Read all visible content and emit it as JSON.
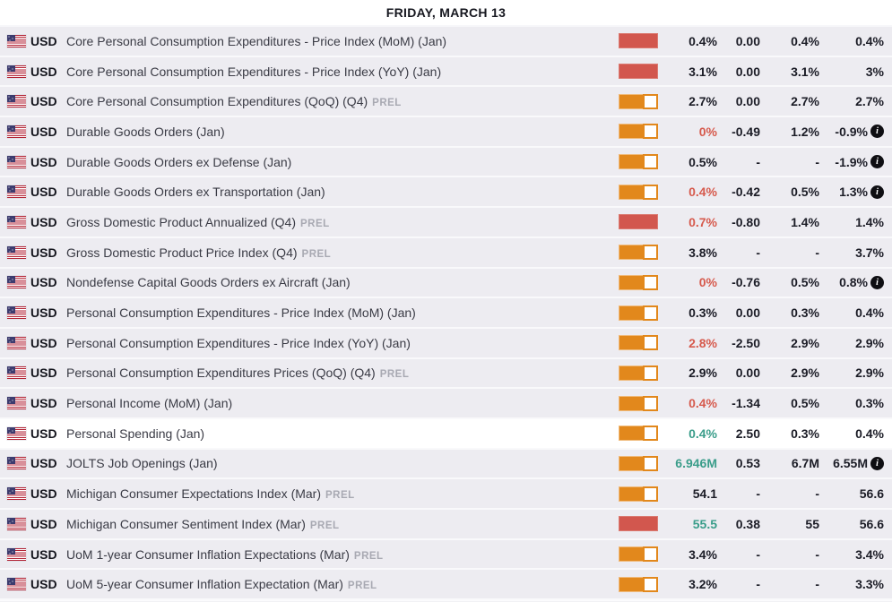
{
  "header": {
    "title": "FRIDAY, MARCH 13"
  },
  "currency": "USD",
  "info_icon_glyph": "i",
  "colors": {
    "row_background": "#edecf1",
    "highlighted_row_background": "#ffffff",
    "high_volatility": "#d2574e",
    "medium_volatility": "#e2881c",
    "negative_actual": "#d65a4d",
    "positive_actual": "#3a9d8a",
    "neutral_value": "#1b1c26",
    "prel_label": "#a8a9b2"
  },
  "rows": [
    {
      "event": "Core Personal Consumption Expenditures - Price Index (MoM) (Jan)",
      "suffix": "",
      "volatility": "high",
      "actual": "0.4%",
      "actual_tone": "neutral",
      "deviation": "0.00",
      "consensus": "0.4%",
      "previous": "0.4%",
      "info": false,
      "highlighted": false
    },
    {
      "event": "Core Personal Consumption Expenditures - Price Index (YoY) (Jan)",
      "suffix": "",
      "volatility": "high",
      "actual": "3.1%",
      "actual_tone": "neutral",
      "deviation": "0.00",
      "consensus": "3.1%",
      "previous": "3%",
      "info": false,
      "highlighted": false
    },
    {
      "event": "Core Personal Consumption Expenditures (QoQ) (Q4)",
      "suffix": "PREL",
      "volatility": "medium",
      "actual": "2.7%",
      "actual_tone": "neutral",
      "deviation": "0.00",
      "consensus": "2.7%",
      "previous": "2.7%",
      "info": false,
      "highlighted": false
    },
    {
      "event": "Durable Goods Orders (Jan)",
      "suffix": "",
      "volatility": "medium",
      "actual": "0%",
      "actual_tone": "negative",
      "deviation": "-0.49",
      "consensus": "1.2%",
      "previous": "-0.9%",
      "info": true,
      "highlighted": false
    },
    {
      "event": "Durable Goods Orders ex Defense (Jan)",
      "suffix": "",
      "volatility": "medium",
      "actual": "0.5%",
      "actual_tone": "neutral",
      "deviation": "-",
      "consensus": "-",
      "previous": "-1.9%",
      "info": true,
      "highlighted": false
    },
    {
      "event": "Durable Goods Orders ex Transportation (Jan)",
      "suffix": "",
      "volatility": "medium",
      "actual": "0.4%",
      "actual_tone": "negative",
      "deviation": "-0.42",
      "consensus": "0.5%",
      "previous": "1.3%",
      "info": true,
      "highlighted": false
    },
    {
      "event": "Gross Domestic Product Annualized (Q4)",
      "suffix": "PREL",
      "volatility": "high",
      "actual": "0.7%",
      "actual_tone": "negative",
      "deviation": "-0.80",
      "consensus": "1.4%",
      "previous": "1.4%",
      "info": false,
      "highlighted": false
    },
    {
      "event": "Gross Domestic Product Price Index (Q4)",
      "suffix": "PREL",
      "volatility": "medium",
      "actual": "3.8%",
      "actual_tone": "neutral",
      "deviation": "-",
      "consensus": "-",
      "previous": "3.7%",
      "info": false,
      "highlighted": false
    },
    {
      "event": "Nondefense Capital Goods Orders ex Aircraft (Jan)",
      "suffix": "",
      "volatility": "medium",
      "actual": "0%",
      "actual_tone": "negative",
      "deviation": "-0.76",
      "consensus": "0.5%",
      "previous": "0.8%",
      "info": true,
      "highlighted": false
    },
    {
      "event": "Personal Consumption Expenditures - Price Index (MoM) (Jan)",
      "suffix": "",
      "volatility": "medium",
      "actual": "0.3%",
      "actual_tone": "neutral",
      "deviation": "0.00",
      "consensus": "0.3%",
      "previous": "0.4%",
      "info": false,
      "highlighted": false
    },
    {
      "event": "Personal Consumption Expenditures - Price Index (YoY) (Jan)",
      "suffix": "",
      "volatility": "medium",
      "actual": "2.8%",
      "actual_tone": "negative",
      "deviation": "-2.50",
      "consensus": "2.9%",
      "previous": "2.9%",
      "info": false,
      "highlighted": false
    },
    {
      "event": "Personal Consumption Expenditures Prices (QoQ) (Q4)",
      "suffix": "PREL",
      "volatility": "medium",
      "actual": "2.9%",
      "actual_tone": "neutral",
      "deviation": "0.00",
      "consensus": "2.9%",
      "previous": "2.9%",
      "info": false,
      "highlighted": false
    },
    {
      "event": "Personal Income (MoM) (Jan)",
      "suffix": "",
      "volatility": "medium",
      "actual": "0.4%",
      "actual_tone": "negative",
      "deviation": "-1.34",
      "consensus": "0.5%",
      "previous": "0.3%",
      "info": false,
      "highlighted": false
    },
    {
      "event": "Personal Spending (Jan)",
      "suffix": "",
      "volatility": "medium",
      "actual": "0.4%",
      "actual_tone": "positive",
      "deviation": "2.50",
      "consensus": "0.3%",
      "previous": "0.4%",
      "info": false,
      "highlighted": true
    },
    {
      "event": "JOLTS Job Openings (Jan)",
      "suffix": "",
      "volatility": "medium",
      "actual": "6.946M",
      "actual_tone": "positive",
      "deviation": "0.53",
      "consensus": "6.7M",
      "previous": "6.55M",
      "info": true,
      "highlighted": false
    },
    {
      "event": "Michigan Consumer Expectations Index (Mar)",
      "suffix": "PREL",
      "volatility": "medium",
      "actual": "54.1",
      "actual_tone": "neutral",
      "deviation": "-",
      "consensus": "-",
      "previous": "56.6",
      "info": false,
      "highlighted": false
    },
    {
      "event": "Michigan Consumer Sentiment Index (Mar)",
      "suffix": "PREL",
      "volatility": "high",
      "actual": "55.5",
      "actual_tone": "positive",
      "deviation": "0.38",
      "consensus": "55",
      "previous": "56.6",
      "info": false,
      "highlighted": false
    },
    {
      "event": "UoM 1-year Consumer Inflation Expectations (Mar)",
      "suffix": "PREL",
      "volatility": "medium",
      "actual": "3.4%",
      "actual_tone": "neutral",
      "deviation": "-",
      "consensus": "-",
      "previous": "3.4%",
      "info": false,
      "highlighted": false
    },
    {
      "event": "UoM 5-year Consumer Inflation Expectation (Mar)",
      "suffix": "PREL",
      "volatility": "medium",
      "actual": "3.2%",
      "actual_tone": "neutral",
      "deviation": "-",
      "consensus": "-",
      "previous": "3.3%",
      "info": false,
      "highlighted": false
    }
  ]
}
